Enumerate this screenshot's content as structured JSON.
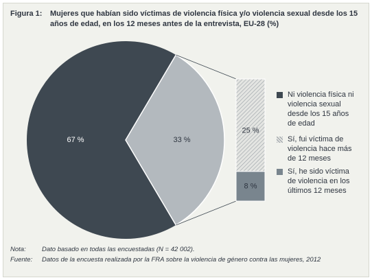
{
  "figure": {
    "label": "Figura 1:",
    "title": "Mujeres que habían sido víctimas de violencia física y/o violencia sexual desde los 15 años de edad, en los 12 meses antes de la entrevista, EU-28 (%)"
  },
  "chart_data": [
    {
      "type": "pie",
      "slices": [
        {
          "label": "Ni violencia física ni violencia sexual desde los 15 años de edad",
          "value": 67,
          "value_label": "67 %",
          "color": "#3e4851"
        },
        {
          "label": "Sí",
          "value": 33,
          "value_label": "33 %",
          "color": "#b3b9be"
        }
      ]
    },
    {
      "type": "bar",
      "stacked": true,
      "segments": [
        {
          "label": "Sí, fui víctima de violencia hace más de 12 meses",
          "value": 25,
          "value_label": "25 %",
          "color": "#d9dbd8",
          "pattern": "hatch"
        },
        {
          "label": "Sí, he sido víctima de violencia en los últimos 12 meses",
          "value": 8,
          "value_label": "8 %",
          "color": "#79858e"
        }
      ]
    }
  ],
  "legend": [
    {
      "label": "Ni violencia física ni violencia sexual desde los 15 años de edad",
      "color": "#3e4851",
      "pattern": "solid"
    },
    {
      "label": "Sí, fui víctima de violencia hace más de 12 meses",
      "color": "#d9dbd8",
      "pattern": "hatch"
    },
    {
      "label": "Sí, he sido víctima de violencia en los últimos 12 meses",
      "color": "#79858e",
      "pattern": "solid"
    }
  ],
  "notes": {
    "nota_key": "Nota:",
    "nota_text": "Dato basado en todas las encuestadas (N = 42 002).",
    "fuente_key": "Fuente:",
    "fuente_text": "Datos de la encuesta realizada por la FRA sobre la violencia de género contra las mujeres, 2012"
  }
}
